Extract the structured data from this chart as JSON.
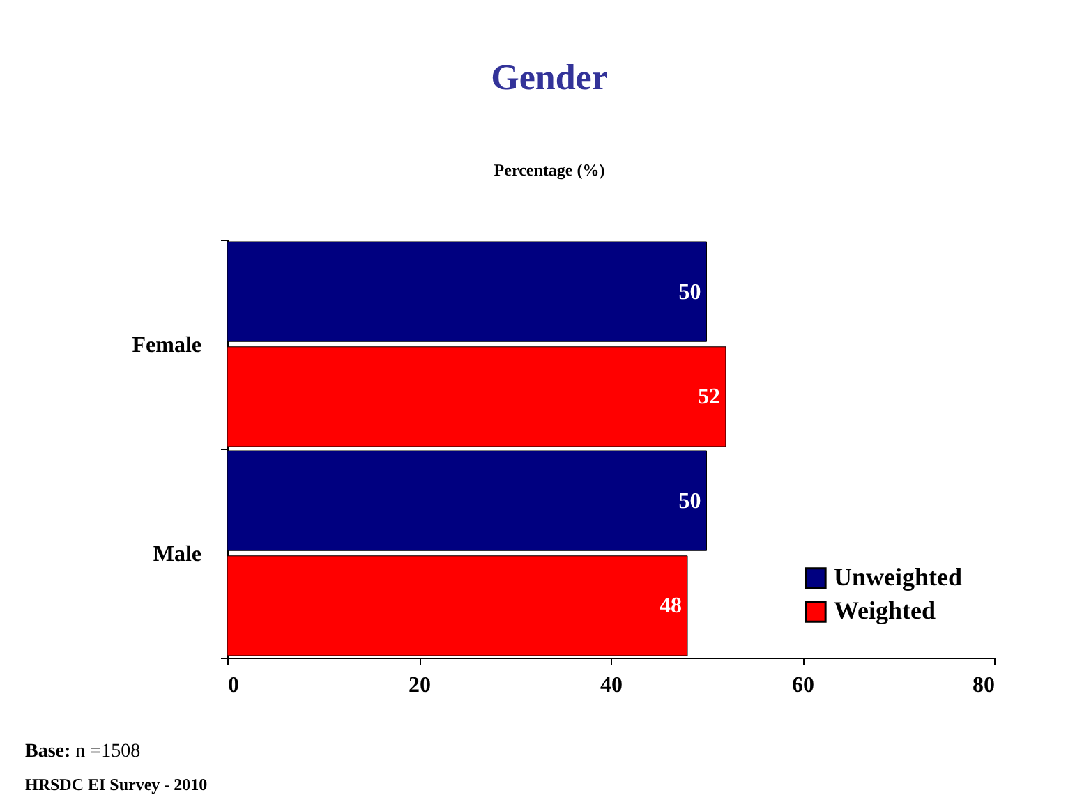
{
  "chart_data": {
    "type": "bar",
    "orientation": "horizontal",
    "title": "Gender",
    "xlabel": "Percentage (%)",
    "categories": [
      "Female",
      "Male"
    ],
    "series": [
      {
        "name": "Unweighted",
        "color": "#000080",
        "values": [
          50,
          50
        ]
      },
      {
        "name": "Weighted",
        "color": "#ff0000",
        "values": [
          52,
          48
        ]
      }
    ],
    "xlim": [
      0,
      80
    ],
    "xticks": [
      0,
      20,
      40,
      60,
      80
    ],
    "data_labels": true,
    "legend": "bottom right",
    "annotations": [
      "Base: n =1508",
      "HRSDC EI Survey - 2010"
    ]
  }
}
